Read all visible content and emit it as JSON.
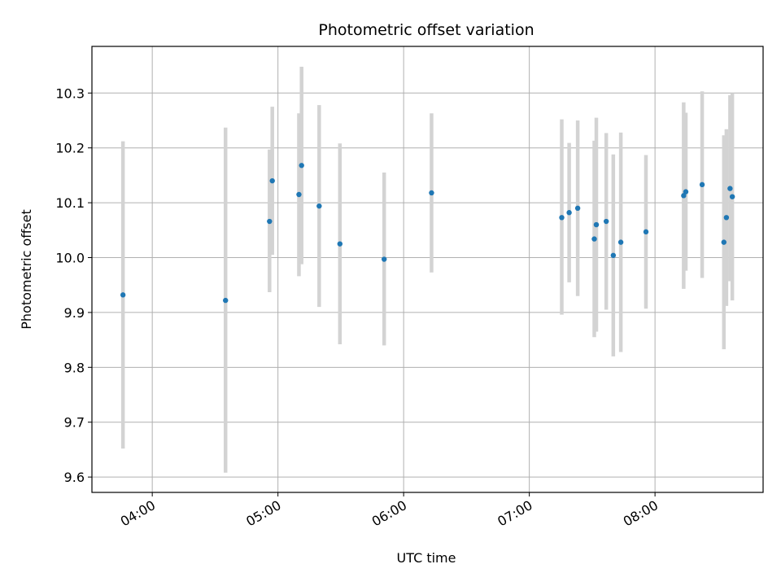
{
  "chart_data": {
    "type": "scatter",
    "title": "Photometric offset variation",
    "xlabel": "UTC time",
    "ylabel": "Photometric offset",
    "x_unit": "hours UTC",
    "xlim": [
      3.52,
      8.86
    ],
    "ylim": [
      9.572,
      10.385
    ],
    "x_ticks": [
      {
        "value": 4,
        "label": "04:00"
      },
      {
        "value": 5,
        "label": "05:00"
      },
      {
        "value": 6,
        "label": "06:00"
      },
      {
        "value": 7,
        "label": "07:00"
      },
      {
        "value": 8,
        "label": "08:00"
      }
    ],
    "y_ticks": [
      {
        "value": 9.6,
        "label": "9.6"
      },
      {
        "value": 9.7,
        "label": "9.7"
      },
      {
        "value": 9.8,
        "label": "9.8"
      },
      {
        "value": 9.9,
        "label": "9.9"
      },
      {
        "value": 10.0,
        "label": "10.0"
      },
      {
        "value": 10.1,
        "label": "10.1"
      },
      {
        "value": 10.2,
        "label": "10.2"
      },
      {
        "value": 10.3,
        "label": "10.3"
      }
    ],
    "grid": true,
    "colors": {
      "point": "#1f77b4",
      "error_bar": "#d3d3d3",
      "grid": "#b0b0b0"
    },
    "series": [
      {
        "points": [
          {
            "x": 3.767,
            "y": 9.932,
            "lo": 9.652,
            "hi": 10.212
          },
          {
            "x": 4.583,
            "y": 9.922,
            "lo": 9.608,
            "hi": 10.237
          },
          {
            "x": 4.933,
            "y": 10.066,
            "lo": 9.937,
            "hi": 10.197
          },
          {
            "x": 4.955,
            "y": 10.14,
            "lo": 10.005,
            "hi": 10.275
          },
          {
            "x": 5.167,
            "y": 10.115,
            "lo": 9.966,
            "hi": 10.263
          },
          {
            "x": 5.188,
            "y": 10.168,
            "lo": 9.988,
            "hi": 10.348
          },
          {
            "x": 5.328,
            "y": 10.094,
            "lo": 9.91,
            "hi": 10.278
          },
          {
            "x": 5.493,
            "y": 10.025,
            "lo": 9.842,
            "hi": 10.208
          },
          {
            "x": 5.845,
            "y": 9.997,
            "lo": 9.84,
            "hi": 10.155
          },
          {
            "x": 6.222,
            "y": 10.118,
            "lo": 9.973,
            "hi": 10.263
          },
          {
            "x": 7.258,
            "y": 10.073,
            "lo": 9.896,
            "hi": 10.252
          },
          {
            "x": 7.317,
            "y": 10.082,
            "lo": 9.955,
            "hi": 10.209
          },
          {
            "x": 7.385,
            "y": 10.09,
            "lo": 9.93,
            "hi": 10.25
          },
          {
            "x": 7.517,
            "y": 10.034,
            "lo": 9.855,
            "hi": 10.213
          },
          {
            "x": 7.533,
            "y": 10.06,
            "lo": 9.865,
            "hi": 10.255
          },
          {
            "x": 7.612,
            "y": 10.066,
            "lo": 9.905,
            "hi": 10.227
          },
          {
            "x": 7.668,
            "y": 10.004,
            "lo": 9.82,
            "hi": 10.188
          },
          {
            "x": 7.728,
            "y": 10.028,
            "lo": 9.828,
            "hi": 10.228
          },
          {
            "x": 7.928,
            "y": 10.047,
            "lo": 9.907,
            "hi": 10.187
          },
          {
            "x": 8.228,
            "y": 10.113,
            "lo": 9.943,
            "hi": 10.283
          },
          {
            "x": 8.245,
            "y": 10.12,
            "lo": 9.976,
            "hi": 10.264
          },
          {
            "x": 8.375,
            "y": 10.133,
            "lo": 9.963,
            "hi": 10.303
          },
          {
            "x": 8.548,
            "y": 10.028,
            "lo": 9.833,
            "hi": 10.223
          },
          {
            "x": 8.568,
            "y": 10.073,
            "lo": 9.912,
            "hi": 10.234
          },
          {
            "x": 8.597,
            "y": 10.126,
            "lo": 9.957,
            "hi": 10.296
          },
          {
            "x": 8.615,
            "y": 10.111,
            "lo": 9.922,
            "hi": 10.3
          }
        ]
      }
    ]
  }
}
